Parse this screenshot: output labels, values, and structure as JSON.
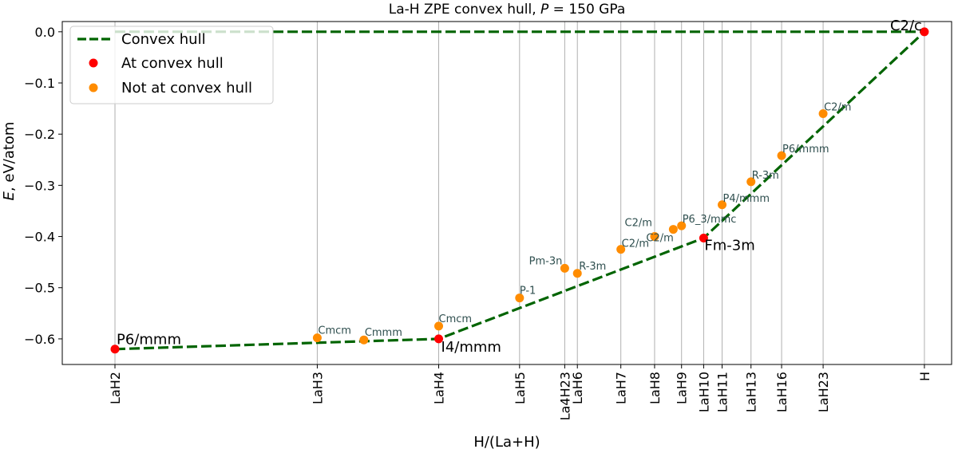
{
  "chart_data": {
    "type": "scatter",
    "title": "La-H ZPE convex hull, P = 150 GPa",
    "title_text": "La-H ZPE convex hull, ",
    "title_italic": "P",
    "title_rest": " = 150 GPa",
    "xlabel": "H/(La+H)",
    "ylabel_italic": "E",
    "ylabel_rest": ", eV/atom",
    "ylim": [
      -0.65,
      0.02
    ],
    "xlim": [
      0.645,
      1.0112
    ],
    "grid": "vertical",
    "legend_position": "top-left",
    "colors": {
      "hull_line": "#006400",
      "on_hull": "#ff0000",
      "off_hull": "#ff8c00",
      "gridline": "#b0b0b0"
    },
    "yticks": [
      0.0,
      -0.1,
      -0.2,
      -0.3,
      -0.4,
      -0.5,
      -0.6
    ],
    "ytick_labels": [
      "0.0",
      "−0.1",
      "−0.2",
      "−0.3",
      "−0.4",
      "−0.5",
      "−0.6"
    ],
    "xticks": [
      {
        "label": "LaH2",
        "x": 0.6667
      },
      {
        "label": "LaH3",
        "x": 0.75
      },
      {
        "label": "LaH4",
        "x": 0.8
      },
      {
        "label": "LaH5",
        "x": 0.8333
      },
      {
        "label": "La4H23",
        "x": 0.8519
      },
      {
        "label": "LaH6",
        "x": 0.8571
      },
      {
        "label": "LaH7",
        "x": 0.875
      },
      {
        "label": "LaH8",
        "x": 0.8889
      },
      {
        "label": "LaH9",
        "x": 0.9
      },
      {
        "label": "LaH10",
        "x": 0.9091
      },
      {
        "label": "LaH11",
        "x": 0.9167
      },
      {
        "label": "LaH13",
        "x": 0.9286
      },
      {
        "label": "LaH16",
        "x": 0.9412
      },
      {
        "label": "LaH23",
        "x": 0.9583
      },
      {
        "label": "H",
        "x": 1.0
      }
    ],
    "series": [
      {
        "name": "Convex hull",
        "style": "dashed",
        "points": [
          [
            0.6667,
            -0.62
          ],
          [
            0.8,
            -0.6
          ],
          [
            0.9091,
            -0.403
          ],
          [
            1.0,
            0.0
          ]
        ],
        "extra_line": [
          [
            0.6667,
            0.0
          ],
          [
            1.0,
            0.0
          ]
        ]
      },
      {
        "name": "At convex hull",
        "points": [
          {
            "x": 0.6667,
            "y": -0.62,
            "label": "P6/mmm"
          },
          {
            "x": 0.8,
            "y": -0.6,
            "label": "I4/mmm"
          },
          {
            "x": 0.9091,
            "y": -0.403,
            "label": "Fm-3m"
          },
          {
            "x": 1.0,
            "y": 0.0,
            "label": "C2/c"
          }
        ]
      },
      {
        "name": "Not at convex hull",
        "points": [
          {
            "x": 0.75,
            "y": -0.598,
            "label": "Cmcm"
          },
          {
            "x": 0.7692,
            "y": -0.602,
            "label": "Cmmm"
          },
          {
            "x": 0.8,
            "y": -0.575,
            "label": "Cmcm"
          },
          {
            "x": 0.8333,
            "y": -0.52,
            "label": "P-1"
          },
          {
            "x": 0.8519,
            "y": -0.462,
            "label": "Pm-3n"
          },
          {
            "x": 0.8571,
            "y": -0.472,
            "label": "R-3m"
          },
          {
            "x": 0.875,
            "y": -0.425,
            "label": "C2/m"
          },
          {
            "x": 0.8889,
            "y": -0.4,
            "label": "C2/m"
          },
          {
            "x": 0.8966,
            "y": -0.386,
            "label": "C2/m"
          },
          {
            "x": 0.9,
            "y": -0.379,
            "label": "P6_3/mmc"
          },
          {
            "x": 0.9167,
            "y": -0.338,
            "label": "P4/mmm"
          },
          {
            "x": 0.9286,
            "y": -0.293,
            "label": "R-3m"
          },
          {
            "x": 0.9412,
            "y": -0.242,
            "label": "P6/mmm"
          },
          {
            "x": 0.9583,
            "y": -0.16,
            "label": "C2/m"
          }
        ]
      }
    ]
  }
}
